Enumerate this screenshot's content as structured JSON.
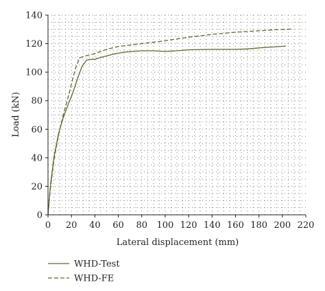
{
  "chart_data": {
    "type": "line",
    "title": "",
    "xlabel": "Lateral displacement (mm)",
    "ylabel": "Load (kN)",
    "xlim": [
      0,
      220
    ],
    "ylim": [
      0,
      140
    ],
    "xticks": [
      0,
      20,
      40,
      60,
      80,
      100,
      120,
      140,
      160,
      180,
      200,
      220
    ],
    "yticks": [
      0,
      20,
      40,
      60,
      80,
      100,
      120,
      140
    ],
    "grid": true,
    "legend_position": "bottom-left",
    "series": [
      {
        "name": "WHD-Test",
        "color": "#5b6a2f",
        "dash": "solid",
        "points": [
          [
            0,
            0
          ],
          [
            2,
            20
          ],
          [
            5,
            40
          ],
          [
            9,
            57
          ],
          [
            13,
            68
          ],
          [
            17,
            77
          ],
          [
            21,
            85
          ],
          [
            25,
            95
          ],
          [
            29,
            104
          ],
          [
            33,
            108.5
          ],
          [
            37,
            109
          ],
          [
            40,
            109
          ],
          [
            46,
            110.5
          ],
          [
            55,
            112.5
          ],
          [
            65,
            114
          ],
          [
            80,
            115
          ],
          [
            90,
            115
          ],
          [
            100,
            114.5
          ],
          [
            110,
            115
          ],
          [
            120,
            115.7
          ],
          [
            140,
            116
          ],
          [
            160,
            116
          ],
          [
            170,
            116.3
          ],
          [
            180,
            117
          ],
          [
            190,
            117.6
          ],
          [
            203,
            118.3
          ]
        ]
      },
      {
        "name": "WHD-FE",
        "color": "#5b6a2f",
        "dash": "dashed",
        "points": [
          [
            0,
            0
          ],
          [
            2,
            18
          ],
          [
            5,
            38
          ],
          [
            9,
            56
          ],
          [
            13,
            70
          ],
          [
            17,
            82
          ],
          [
            21,
            95
          ],
          [
            24,
            104
          ],
          [
            27,
            110
          ],
          [
            30,
            111
          ],
          [
            40,
            113
          ],
          [
            50,
            116
          ],
          [
            60,
            118
          ],
          [
            80,
            120
          ],
          [
            100,
            122
          ],
          [
            120,
            124.5
          ],
          [
            140,
            126.5
          ],
          [
            160,
            128
          ],
          [
            180,
            129
          ],
          [
            200,
            130
          ],
          [
            208,
            130.2
          ]
        ]
      }
    ]
  }
}
